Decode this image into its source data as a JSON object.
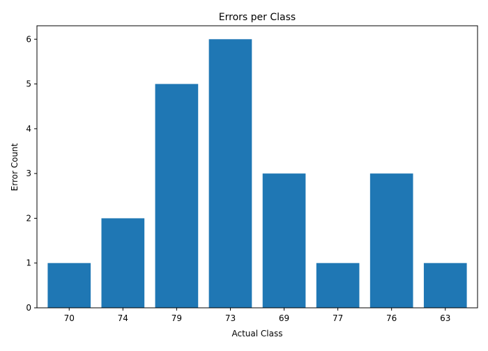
{
  "chart_data": {
    "type": "bar",
    "title": "Errors per Class",
    "xlabel": "Actual Class",
    "ylabel": "Error Count",
    "categories": [
      "70",
      "74",
      "79",
      "73",
      "69",
      "77",
      "76",
      "63"
    ],
    "values": [
      1,
      2,
      5,
      6,
      3,
      1,
      3,
      1
    ],
    "ylim": [
      0,
      6.3
    ],
    "yticks": [
      "0",
      "1",
      "2",
      "3",
      "4",
      "5",
      "6"
    ],
    "grid": false,
    "bar_color": "#1f77b4"
  }
}
